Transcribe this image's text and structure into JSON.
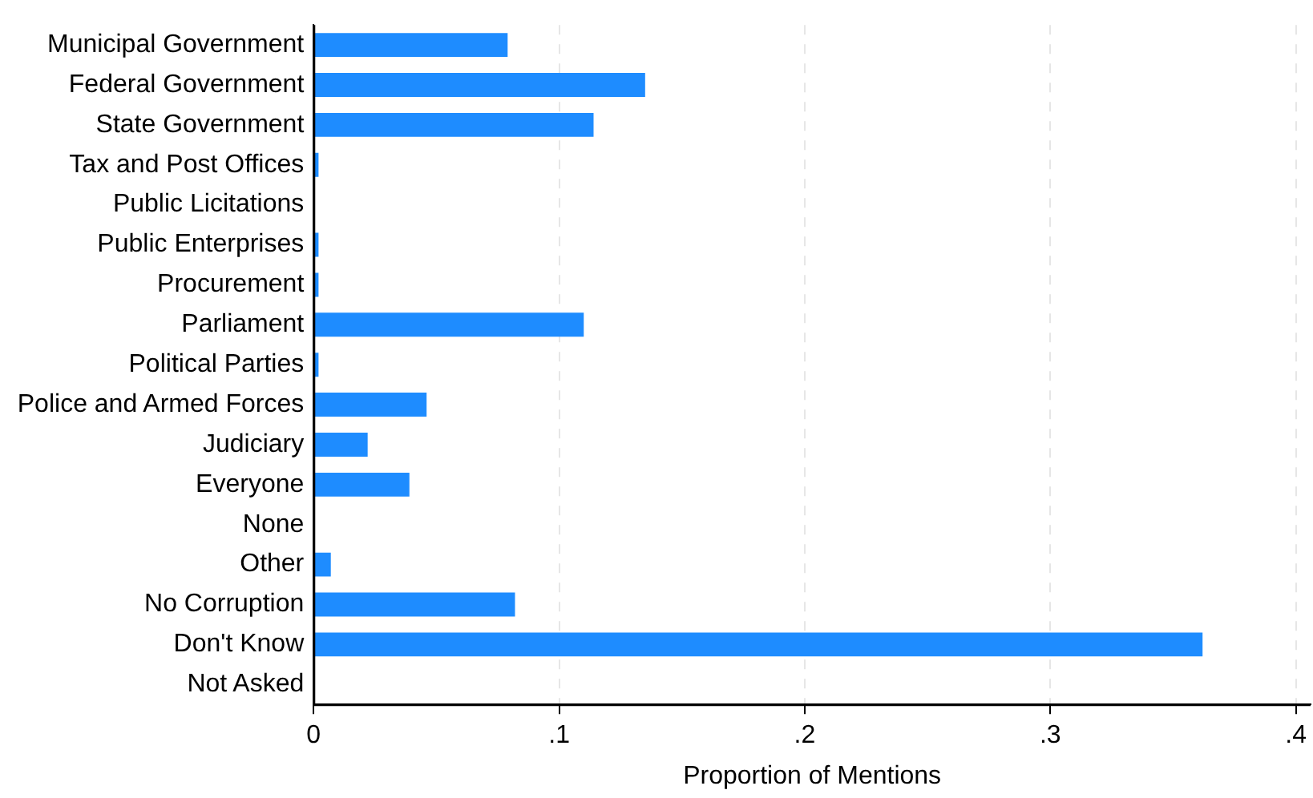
{
  "chart_data": {
    "type": "bar",
    "orientation": "horizontal",
    "xlabel": "Proportion of Mentions",
    "categories": [
      "Municipal Government",
      "Federal Government",
      "State Government",
      "Tax and Post Offices",
      "Public Licitations",
      "Public Enterprises",
      "Procurement",
      "Parliament",
      "Political Parties",
      "Police and Armed Forces",
      "Judiciary",
      "Everyone",
      "None",
      "Other",
      "No Corruption",
      "Don't Know",
      "Not Asked"
    ],
    "values": [
      0.079,
      0.135,
      0.114,
      0.002,
      0,
      0.002,
      0.002,
      0.11,
      0.002,
      0.046,
      0.022,
      0.039,
      0,
      0.007,
      0.082,
      0.362,
      0
    ],
    "color": "#1e8cff",
    "xlim": [
      0,
      0.406
    ],
    "xticks": [
      0,
      {
        "value": 0.1,
        "label": ".1"
      },
      {
        "value": 0.2,
        "label": ".2"
      },
      {
        "value": 0.3,
        "label": ".3"
      },
      {
        "value": 0.4,
        "label": ".4"
      }
    ],
    "grid": "x"
  }
}
